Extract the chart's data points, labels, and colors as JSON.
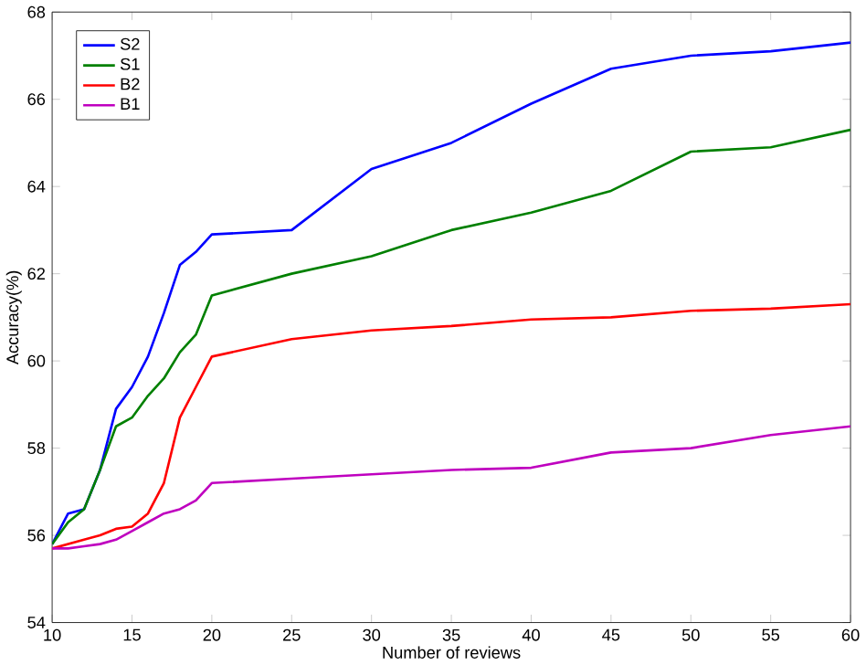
{
  "chart_data": {
    "type": "line",
    "xlabel": "Number of reviews",
    "ylabel": "Accuracy(%)",
    "x": [
      10,
      11,
      12,
      13,
      14,
      15,
      16,
      17,
      18,
      19,
      20,
      25,
      30,
      35,
      40,
      45,
      50,
      55,
      60
    ],
    "series": [
      {
        "name": "S2",
        "color": "#0000ff",
        "values": [
          55.8,
          56.5,
          56.6,
          57.5,
          58.9,
          59.4,
          60.1,
          61.1,
          62.2,
          62.5,
          62.9,
          63.0,
          64.4,
          65.0,
          65.9,
          66.7,
          67.0,
          67.1,
          67.3
        ]
      },
      {
        "name": "S1",
        "color": "#008000",
        "values": [
          55.8,
          56.3,
          56.6,
          57.5,
          58.5,
          58.7,
          59.2,
          59.6,
          60.2,
          60.6,
          61.5,
          62.0,
          62.4,
          63.0,
          63.4,
          63.9,
          64.8,
          64.9,
          65.3
        ]
      },
      {
        "name": "B2",
        "color": "#ff0000",
        "values": [
          55.7,
          55.8,
          55.9,
          56.0,
          56.15,
          56.2,
          56.5,
          57.2,
          58.7,
          59.4,
          60.1,
          60.5,
          60.7,
          60.8,
          60.95,
          61.0,
          61.15,
          61.2,
          61.3
        ]
      },
      {
        "name": "B1",
        "color": "#bf00bf",
        "values": [
          55.7,
          55.7,
          55.75,
          55.8,
          55.9,
          56.1,
          56.3,
          56.5,
          56.6,
          56.8,
          57.2,
          57.3,
          57.4,
          57.5,
          57.55,
          57.9,
          58.0,
          58.3,
          58.5
        ]
      }
    ],
    "xlim": [
      10,
      60
    ],
    "ylim": [
      54,
      68
    ],
    "xticks": [
      10,
      15,
      20,
      25,
      30,
      35,
      40,
      45,
      50,
      55,
      60
    ],
    "yticks": [
      54,
      56,
      58,
      60,
      62,
      64,
      66,
      68
    ],
    "grid": false,
    "legend": "top left",
    "marker": "none",
    "line_style": "solid"
  }
}
